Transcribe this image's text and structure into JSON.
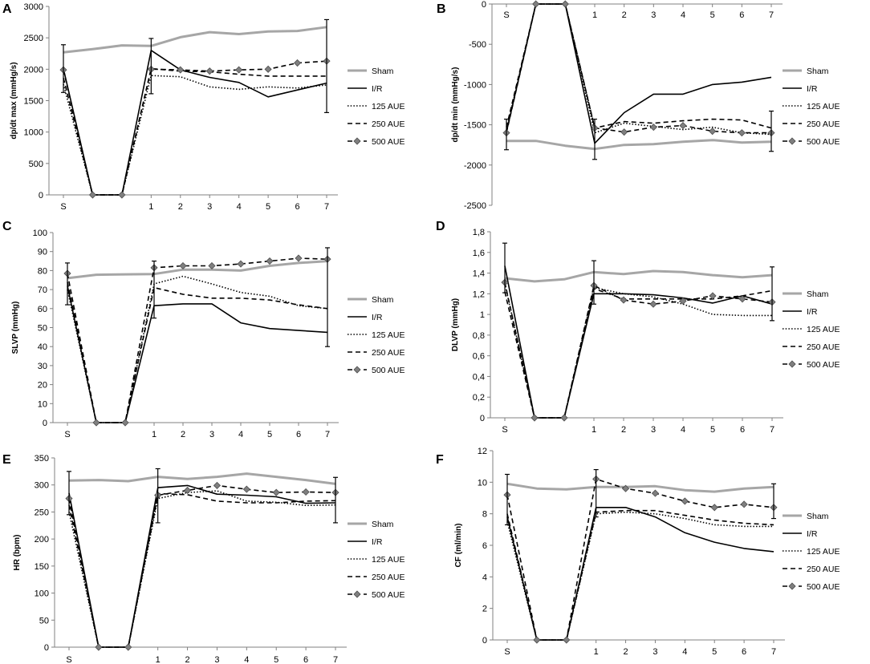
{
  "figure": {
    "legend_entries": [
      "Sham",
      "I/R",
      "125 AUE",
      "250 AUE",
      "500 AUE"
    ],
    "series_styles": {
      "Sham": {
        "color": "#a6a6a6",
        "dash": "solid",
        "marker": "none"
      },
      "I/R": {
        "color": "#000000",
        "dash": "solid",
        "marker": "none"
      },
      "125 AUE": {
        "color": "#000000",
        "dash": "dotted",
        "marker": "none"
      },
      "250 AUE": {
        "color": "#000000",
        "dash": "dashed",
        "marker": "none"
      },
      "500 AUE": {
        "color": "#000000",
        "dash": "dashed",
        "marker": "diamond"
      }
    }
  },
  "chart_data": [
    {
      "panel": "A",
      "type": "line",
      "categories": [
        "S",
        "",
        "",
        "1",
        "2",
        "3",
        "4",
        "5",
        "6",
        "7"
      ],
      "ylabel": "dp/dt max (mmHg/s)",
      "xlabel": "",
      "ylim": [
        0,
        3000
      ],
      "yticks": [
        "0",
        "500",
        "1000",
        "1500",
        "2000",
        "2500",
        "3000"
      ],
      "series": [
        {
          "name": "Sham",
          "values": [
            2270,
            2320,
            2380,
            2370,
            2510,
            2590,
            2560,
            2600,
            2610,
            2670
          ]
        },
        {
          "name": "I/R",
          "values": [
            2010,
            0,
            0,
            2300,
            1990,
            1870,
            1790,
            1560,
            1670,
            1780
          ]
        },
        {
          "name": "125 AUE",
          "values": [
            1760,
            0,
            0,
            1900,
            1880,
            1720,
            1680,
            1720,
            1700,
            1750
          ]
        },
        {
          "name": "250 AUE",
          "values": [
            1860,
            0,
            0,
            2010,
            1970,
            1960,
            1920,
            1890,
            1890,
            1890
          ]
        },
        {
          "name": "500 AUE",
          "values": [
            1990,
            0,
            0,
            2000,
            1990,
            1970,
            1990,
            2000,
            2100,
            2130
          ]
        }
      ],
      "error_bars": [
        {
          "category": "S",
          "value": 2010,
          "err": 380
        },
        {
          "category": "1",
          "value": 2050,
          "err": 440
        },
        {
          "category": "7",
          "value": 2050,
          "err": 740
        }
      ]
    },
    {
      "panel": "B",
      "type": "line",
      "categories": [
        "S",
        "",
        "",
        "1",
        "2",
        "3",
        "4",
        "5",
        "6",
        "7"
      ],
      "ylabel": "dp/dt min (mmHg/s)",
      "xlabel": "",
      "ylim": [
        -2500,
        0
      ],
      "xaxis_position": "top",
      "yticks": [
        "-2500",
        "-2000",
        "-1500",
        "-1000",
        "-500",
        "0"
      ],
      "series": [
        {
          "name": "Sham",
          "values": [
            -1700,
            -1700,
            -1760,
            -1800,
            -1750,
            -1740,
            -1710,
            -1690,
            -1720,
            -1710
          ]
        },
        {
          "name": "I/R",
          "values": [
            -1590,
            0,
            0,
            -1730,
            -1350,
            -1120,
            -1120,
            -1000,
            -970,
            -910
          ]
        },
        {
          "name": "125 AUE",
          "values": [
            -1560,
            0,
            0,
            -1600,
            -1480,
            -1520,
            -1560,
            -1530,
            -1600,
            -1620
          ]
        },
        {
          "name": "250 AUE",
          "values": [
            -1530,
            0,
            0,
            -1540,
            -1460,
            -1480,
            -1450,
            -1430,
            -1440,
            -1540
          ]
        },
        {
          "name": "500 AUE",
          "values": [
            -1600,
            0,
            0,
            -1540,
            -1590,
            -1530,
            -1510,
            -1580,
            -1600,
            -1600
          ]
        }
      ],
      "error_bars": [
        {
          "category": "S",
          "value": -1620,
          "err": 190
        },
        {
          "category": "1",
          "value": -1680,
          "err": 250
        },
        {
          "category": "7",
          "value": -1580,
          "err": 250
        }
      ]
    },
    {
      "panel": "C",
      "type": "line",
      "categories": [
        "S",
        "",
        "",
        "1",
        "2",
        "3",
        "4",
        "5",
        "6",
        "7"
      ],
      "ylabel": "SLVP (mmHg)",
      "xlabel": "",
      "ylim": [
        0,
        100
      ],
      "yticks": [
        "0",
        "10",
        "20",
        "30",
        "40",
        "50",
        "60",
        "70",
        "80",
        "90",
        "100"
      ],
      "series": [
        {
          "name": "Sham",
          "values": [
            76,
            77.8,
            78,
            78.2,
            80.5,
            80.5,
            80,
            82.5,
            84,
            85
          ]
        },
        {
          "name": "I/R",
          "values": [
            72,
            0,
            0,
            61.5,
            62.5,
            62.5,
            52.5,
            49.5,
            48.5,
            47.5
          ]
        },
        {
          "name": "125 AUE",
          "values": [
            70,
            0,
            0,
            73,
            77,
            73,
            68.5,
            66.5,
            61.5,
            60
          ]
        },
        {
          "name": "250 AUE",
          "values": [
            74,
            0,
            0,
            71,
            67.5,
            65.5,
            65.5,
            64.5,
            62,
            60
          ]
        },
        {
          "name": "500 AUE",
          "values": [
            78.5,
            0,
            0,
            81.5,
            82.5,
            82.5,
            83.5,
            85,
            86.5,
            86
          ]
        }
      ],
      "error_bars": [
        {
          "category": "S",
          "value": 73,
          "err": 11
        },
        {
          "category": "1",
          "value": 70,
          "err": 15
        },
        {
          "category": "7",
          "value": 66,
          "err": 26
        }
      ]
    },
    {
      "panel": "D",
      "type": "line",
      "categories": [
        "S",
        "",
        "",
        "1",
        "2",
        "3",
        "4",
        "5",
        "6",
        "7"
      ],
      "ylabel": "DLVP (mmHg)",
      "xlabel": "",
      "ylim": [
        0,
        1.8
      ],
      "yticks": [
        "0",
        "0,2",
        "0,4",
        "0,6",
        "0,8",
        "1",
        "1,2",
        "1,4",
        "1,6",
        "1,8"
      ],
      "series": [
        {
          "name": "Sham",
          "values": [
            1.35,
            1.32,
            1.34,
            1.41,
            1.39,
            1.42,
            1.41,
            1.38,
            1.36,
            1.38
          ]
        },
        {
          "name": "I/R",
          "values": [
            1.47,
            0,
            0,
            1.2,
            1.2,
            1.19,
            1.16,
            1.11,
            1.18,
            1.1
          ]
        },
        {
          "name": "125 AUE",
          "values": [
            1.3,
            0,
            0,
            1.26,
            1.2,
            1.17,
            1.1,
            1.0,
            0.99,
            0.99
          ]
        },
        {
          "name": "250 AUE",
          "values": [
            1.22,
            0,
            0,
            1.25,
            1.15,
            1.15,
            1.15,
            1.15,
            1.18,
            1.23
          ]
        },
        {
          "name": "500 AUE",
          "values": [
            1.31,
            0,
            0,
            1.28,
            1.14,
            1.1,
            1.13,
            1.18,
            1.15,
            1.12
          ]
        }
      ],
      "error_bars": [
        {
          "category": "S",
          "value": 1.45,
          "err": 0.24
        },
        {
          "category": "1",
          "value": 1.31,
          "err": 0.21
        },
        {
          "category": "7",
          "value": 1.2,
          "err": 0.26
        }
      ]
    },
    {
      "panel": "E",
      "type": "line",
      "categories": [
        "S",
        "",
        "",
        "1",
        "2",
        "3",
        "4",
        "5",
        "6",
        "7"
      ],
      "ylabel": "HR (bpm)",
      "xlabel": "",
      "ylim": [
        0,
        350
      ],
      "yticks": [
        "0",
        "50",
        "100",
        "150",
        "200",
        "250",
        "300",
        "350"
      ],
      "series": [
        {
          "name": "Sham",
          "values": [
            308,
            309,
            307,
            315,
            311,
            315,
            321,
            315,
            309,
            302
          ]
        },
        {
          "name": "I/R",
          "values": [
            285,
            0,
            0,
            295,
            299,
            283,
            281,
            278,
            266,
            267
          ]
        },
        {
          "name": "125 AUE",
          "values": [
            250,
            0,
            0,
            275,
            286,
            289,
            270,
            268,
            262,
            263
          ]
        },
        {
          "name": "250 AUE",
          "values": [
            263,
            0,
            0,
            284,
            282,
            270,
            267,
            267,
            270,
            271
          ]
        },
        {
          "name": "500 AUE",
          "values": [
            275,
            0,
            0,
            281,
            290,
            299,
            292,
            286,
            287,
            286
          ]
        }
      ],
      "error_bars": [
        {
          "category": "S",
          "value": 285,
          "err": 40
        },
        {
          "category": "1",
          "value": 280,
          "err": 50
        },
        {
          "category": "7",
          "value": 272,
          "err": 42
        }
      ]
    },
    {
      "panel": "F",
      "type": "line",
      "categories": [
        "S",
        "",
        "",
        "1",
        "2",
        "3",
        "4",
        "5",
        "6",
        "7"
      ],
      "ylabel": "CF (ml/min)",
      "xlabel": "",
      "ylim": [
        0,
        12
      ],
      "yticks": [
        "0",
        "2",
        "4",
        "6",
        "8",
        "10",
        "12"
      ],
      "series": [
        {
          "name": "Sham",
          "values": [
            9.9,
            9.6,
            9.55,
            9.7,
            9.7,
            9.75,
            9.5,
            9.4,
            9.6,
            9.7
          ]
        },
        {
          "name": "I/R",
          "values": [
            7.8,
            0,
            0,
            8.4,
            8.4,
            7.8,
            6.8,
            6.2,
            5.8,
            5.6
          ]
        },
        {
          "name": "125 AUE",
          "values": [
            7.5,
            0,
            0,
            8.0,
            8.1,
            8.0,
            7.7,
            7.3,
            7.2,
            7.2
          ]
        },
        {
          "name": "250 AUE",
          "values": [
            8.0,
            0,
            0,
            8.1,
            8.2,
            8.2,
            7.9,
            7.6,
            7.4,
            7.3
          ]
        },
        {
          "name": "500 AUE",
          "values": [
            9.2,
            0,
            0,
            10.2,
            9.6,
            9.3,
            8.8,
            8.4,
            8.6,
            8.4
          ]
        }
      ],
      "error_bars": [
        {
          "category": "S",
          "value": 8.9,
          "err": 1.6
        },
        {
          "category": "1",
          "value": 9.3,
          "err": 1.5
        },
        {
          "category": "7",
          "value": 8.8,
          "err": 1.1
        }
      ]
    }
  ]
}
